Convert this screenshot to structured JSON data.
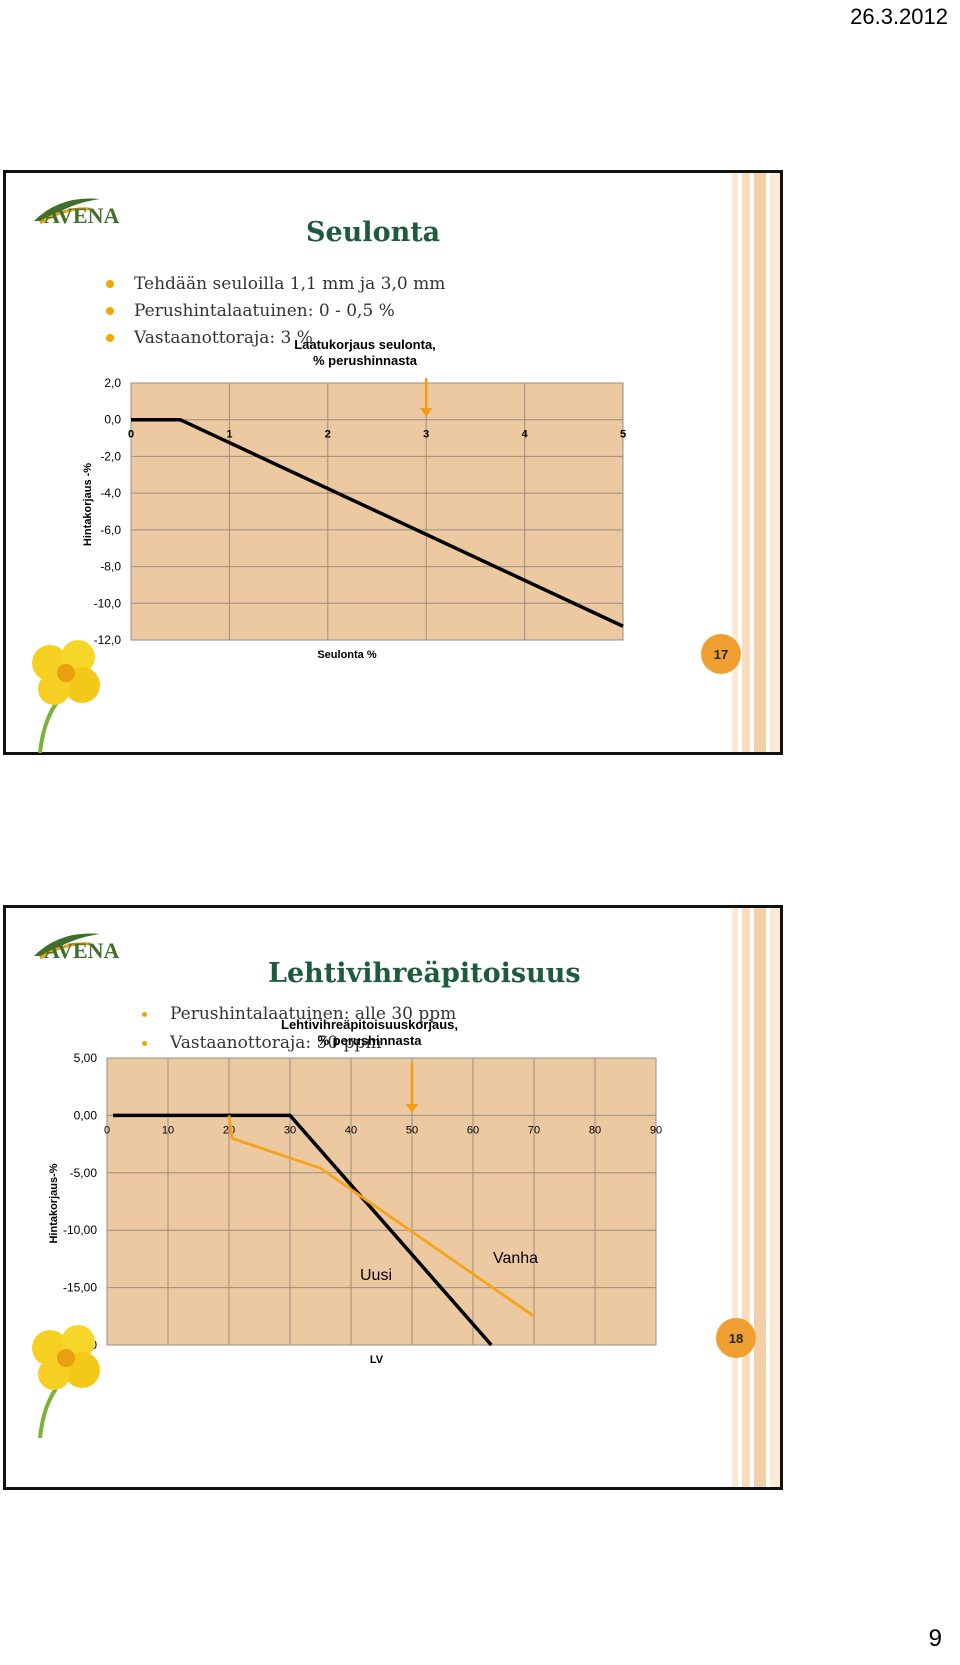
{
  "header": {
    "date": "26.3.2012"
  },
  "footer": {
    "page_number": "9"
  },
  "slides": [
    {
      "title": "Seulonta",
      "bullets": [
        "Tehdään seuloilla 1,1 mm ja 3,0 mm",
        "Perushintalaatuinen: 0 - 0,5  %",
        "Vastaanottoraja: 3 %"
      ],
      "slide_number": "17",
      "logo_text": "AVENA",
      "chart_data": {
        "type": "line",
        "title_lines": [
          "Laatukorjaus seulonta,",
          "% perushinnasta"
        ],
        "xlabel": "Seulonta %",
        "ylabel": "Hintakorjaus -%",
        "xlim": [
          0,
          5
        ],
        "ylim": [
          -12,
          2
        ],
        "x_ticks": [
          "0",
          "1",
          "2",
          "3",
          "4",
          "5"
        ],
        "y_ticks": [
          "2,0",
          "0,0",
          "-2,0",
          "-4,0",
          "-6,0",
          "-8,0",
          "-10,0",
          "-12,0"
        ],
        "grid": true,
        "series": [
          {
            "x": [
              0,
              0.5,
              5
            ],
            "y": [
              0,
              0,
              -11.25
            ],
            "color": "#000000"
          }
        ],
        "marker_arrow": {
          "x": 3,
          "color": "#f39c12"
        }
      }
    },
    {
      "title": "Lehtivihreäpitoisuus",
      "bullets": [
        "Perushintalaatuinen: alle 30 ppm",
        "Vastaanottoraja: 50 ppm"
      ],
      "slide_number": "18",
      "logo_text": "AVENA",
      "chart_data": {
        "type": "line",
        "title_lines": [
          "Lehtivihreäpitoisuuskorjaus,",
          "% perushinnasta"
        ],
        "xlabel": "LV",
        "ylabel": "Hintakorjaus-%",
        "xlim": [
          0,
          90
        ],
        "ylim": [
          -20,
          5
        ],
        "x_ticks": [
          "0",
          "10",
          "20",
          "30",
          "40",
          "50",
          "60",
          "70",
          "80",
          "90"
        ],
        "y_ticks": [
          "5,00",
          "0,00",
          "-5,00",
          "-10,00",
          "-15,00",
          "-20,00"
        ],
        "grid": true,
        "series": [
          {
            "name": "Uusi",
            "x": [
              1,
              30,
              63
            ],
            "y": [
              0,
              0,
              -20
            ],
            "color": "#000000"
          },
          {
            "name": "Vanha",
            "x": [
              20,
              20.5,
              35,
              70
            ],
            "y": [
              0,
              -2,
              -4.6,
              -17.5
            ],
            "color": "#f5a31a"
          }
        ],
        "marker_arrow": {
          "x": 50,
          "color": "#f39c12"
        }
      }
    }
  ]
}
